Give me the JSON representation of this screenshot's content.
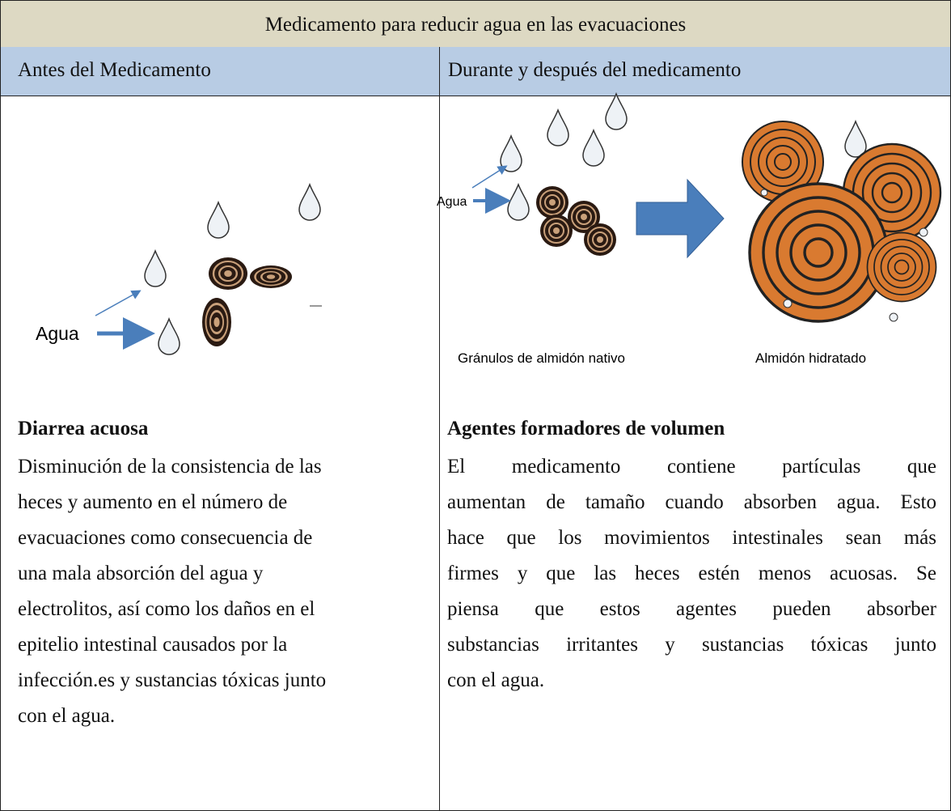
{
  "title": "Medicamento para reducir agua en las evacuaciones",
  "columns": [
    {
      "header": "Antes del Medicamento",
      "image_labels": [
        "Agua"
      ],
      "heading": "Diarrea acuosa",
      "lines": [
        "Disminución de la consistencia de las",
        "heces y aumento en el número de",
        "evacuaciones como consecuencia de",
        "una mala absorción del agua y",
        "electrolitos, así como los daños en el",
        "epitelio intestinal causados por la",
        "infección.es y sustancias tóxicas junto",
        "con el agua."
      ]
    },
    {
      "header": "Durante y después del medicamento",
      "image_labels": [
        "Agua",
        "Gránulos de almidón nativo",
        "Almidón hidratado"
      ],
      "heading": "Agentes formadores de volumen",
      "lines": [
        "El medicamento contiene partículas que",
        "aumentan de tamaño cuando absorben agua. Esto",
        "hace que los movimientos intestinales sean más",
        "firmes y que las heces estén menos acuosas. Se",
        "piensa que estos agentes pueden absorber",
        "substancias irritantes y sustancias tóxicas junto",
        "con el agua."
      ]
    }
  ]
}
